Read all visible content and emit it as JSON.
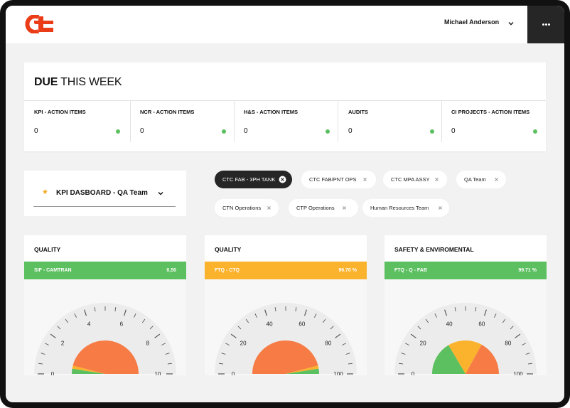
{
  "header": {
    "logo_text": "ct",
    "user_name": "Michael Anderson",
    "icons": {
      "user_menu": "chevron-down-icon",
      "more": "more-horizontal-icon"
    }
  },
  "due": {
    "title_bold": "DUE",
    "title_rest": " THIS WEEK",
    "cells": [
      {
        "label": "KPI - ACTION ITEMS",
        "value": "0"
      },
      {
        "label": "NCR - ACTION ITEMS",
        "value": "0"
      },
      {
        "label": "H&S - ACTION ITEMS",
        "value": "0"
      },
      {
        "label": "AUDITS",
        "value": "0"
      },
      {
        "label": "CI PROJECTS - ACTION ITEMS",
        "value": "0"
      }
    ],
    "status_color": "#5cbf60"
  },
  "dashboard": {
    "label": "KPI DASBOARD - QA Team",
    "star_icon": "star-icon",
    "chevron_icon": "chevron-down-icon"
  },
  "chips": [
    {
      "label": "CTC FAB - 3PH TANK",
      "active": true
    },
    {
      "label": "CTC FAB/PNT OPS",
      "active": false
    },
    {
      "label": "CTC MPA ASSY",
      "active": false
    },
    {
      "label": "QA Team",
      "active": false
    },
    {
      "label": "CTN Operations",
      "active": false
    },
    {
      "label": "CTP Operations",
      "active": false
    },
    {
      "label": "Human Resources Team",
      "active": false
    }
  ],
  "colors": {
    "green": "#5cbf60",
    "amber": "#fbb22c",
    "orange": "#f77b45",
    "dark": "#262626"
  },
  "gauges": [
    {
      "title": "QUALITY",
      "kpi": "SIF - CAMTRAN",
      "value_text": "0,50",
      "band_color": "#5cbf60",
      "scale_labels": [
        "0",
        "2",
        "4",
        "6",
        "8",
        "10"
      ],
      "scale_max": 10,
      "zones": [
        {
          "color": "#5cbf60",
          "from": 0,
          "to": 0.5
        },
        {
          "color": "#fbb22c",
          "from": 0.5,
          "to": 0.8
        },
        {
          "color": "#f77b45",
          "from": 0.8,
          "to": 10
        }
      ]
    },
    {
      "title": "QUALITY",
      "kpi": "FTQ - CTQ",
      "value_text": "96.70 %",
      "band_color": "#fbb22c",
      "scale_labels": [
        "0",
        "20",
        "40",
        "60",
        "80",
        "100"
      ],
      "scale_max": 100,
      "zones": [
        {
          "color": "#f77b45",
          "from": 0,
          "to": 92
        },
        {
          "color": "#fbb22c",
          "from": 92,
          "to": 95
        },
        {
          "color": "#5cbf60",
          "from": 95,
          "to": 100
        }
      ]
    },
    {
      "title": "SAFETY & ENVIROMENTAL",
      "kpi": "FTQ - Q - FAB",
      "value_text": "99.71 %",
      "band_color": "#5cbf60",
      "scale_labels": [
        "0",
        "20",
        "40",
        "60",
        "80",
        "100"
      ],
      "scale_max": 100,
      "zones": [
        {
          "color": "#5cbf60",
          "from": 0,
          "to": 33
        },
        {
          "color": "#fbb22c",
          "from": 33,
          "to": 66
        },
        {
          "color": "#f77b45",
          "from": 66,
          "to": 100
        }
      ]
    }
  ]
}
